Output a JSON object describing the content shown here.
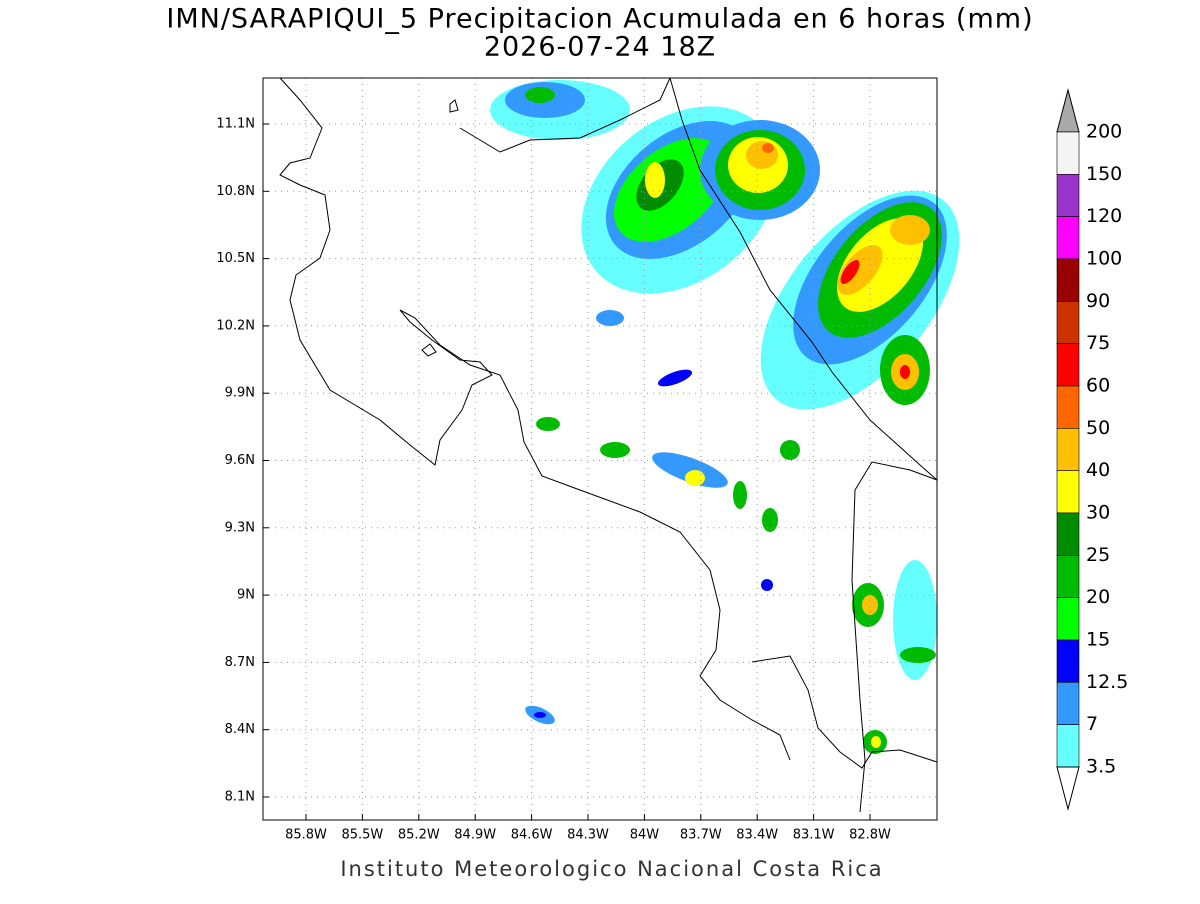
{
  "header": {
    "title": "IMN/SARAPIQUI_5 Precipitacion Acumulada en 6 horas (mm)",
    "subtitle": "2026-07-24 18Z"
  },
  "map": {
    "lon_labels": [
      "85.8W",
      "85.5W",
      "85.2W",
      "84.9W",
      "84.6W",
      "84.3W",
      "84W",
      "83.7W",
      "83.4W",
      "83.1W",
      "82.8W"
    ],
    "lat_labels": [
      "11.1N",
      "10.8N",
      "10.5N",
      "10.2N",
      "9.9N",
      "9.6N",
      "9.3N",
      "9N",
      "8.7N",
      "8.4N",
      "8.1N"
    ]
  },
  "colorbar": {
    "labels": [
      "200",
      "150",
      "120",
      "100",
      "90",
      "75",
      "60",
      "50",
      "40",
      "30",
      "25",
      "20",
      "15",
      "12.5",
      "7",
      "3.5"
    ],
    "colors": [
      "#aaaaaa",
      "#f5f5f5",
      "#9933cc",
      "#ff00ff",
      "#990000",
      "#cc3300",
      "#ff0000",
      "#ff6600",
      "#ffc000",
      "#ffff00",
      "#008c00",
      "#00bb00",
      "#00ff00",
      "#0000ff",
      "#3399ff",
      "#66ffff",
      "#ffffff"
    ]
  },
  "footer": "Instituto Meteorologico Nacional Costa Rica"
}
